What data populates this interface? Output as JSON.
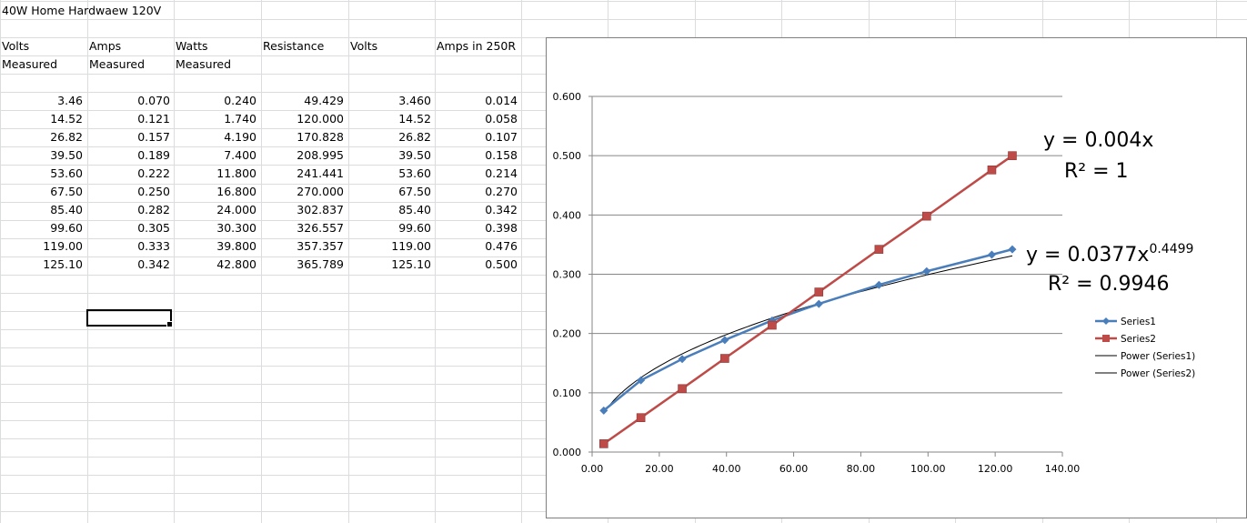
{
  "sheet": {
    "title": "40W Home Hardwaew 120V",
    "headers": [
      {
        "line1": "Volts",
        "line2": "Measured"
      },
      {
        "line1": "Amps",
        "line2": "Measured"
      },
      {
        "line1": "Watts",
        "line2": "Measured"
      },
      {
        "line1": "Resistance",
        "line2": ""
      },
      {
        "line1": "Volts",
        "line2": ""
      },
      {
        "line1": "Amps in 250R",
        "line2": ""
      }
    ],
    "rows": [
      [
        "3.46",
        "0.070",
        "0.240",
        "49.429",
        "3.460",
        "0.014"
      ],
      [
        "14.52",
        "0.121",
        "1.740",
        "120.000",
        "14.52",
        "0.058"
      ],
      [
        "26.82",
        "0.157",
        "4.190",
        "170.828",
        "26.82",
        "0.107"
      ],
      [
        "39.50",
        "0.189",
        "7.400",
        "208.995",
        "39.50",
        "0.158"
      ],
      [
        "53.60",
        "0.222",
        "11.800",
        "241.441",
        "53.60",
        "0.214"
      ],
      [
        "67.50",
        "0.250",
        "16.800",
        "270.000",
        "67.50",
        "0.270"
      ],
      [
        "85.40",
        "0.282",
        "24.000",
        "302.837",
        "85.40",
        "0.342"
      ],
      [
        "99.60",
        "0.305",
        "30.300",
        "326.557",
        "99.60",
        "0.398"
      ],
      [
        "119.00",
        "0.333",
        "39.800",
        "357.357",
        "119.00",
        "0.476"
      ],
      [
        "125.10",
        "0.342",
        "42.800",
        "365.789",
        "125.10",
        "0.500"
      ]
    ]
  },
  "chart_data": {
    "type": "scatter",
    "xlim": [
      0,
      140
    ],
    "ylim": [
      0,
      0.6
    ],
    "x_ticks": [
      "0.00",
      "20.00",
      "40.00",
      "60.00",
      "80.00",
      "100.00",
      "120.00",
      "140.00"
    ],
    "y_ticks": [
      "0.000",
      "0.100",
      "0.200",
      "0.300",
      "0.400",
      "0.500",
      "0.600"
    ],
    "grid": true,
    "legend_position": "right",
    "series": [
      {
        "name": "Series1",
        "color": "#4a7ebb",
        "marker": "diamond",
        "x": [
          3.46,
          14.52,
          26.82,
          39.5,
          53.6,
          67.5,
          85.4,
          99.6,
          119.0,
          125.1
        ],
        "y": [
          0.07,
          0.121,
          0.157,
          0.189,
          0.222,
          0.25,
          0.282,
          0.305,
          0.333,
          0.342
        ]
      },
      {
        "name": "Series2",
        "color": "#be4b48",
        "marker": "square",
        "x": [
          3.46,
          14.52,
          26.82,
          39.5,
          53.6,
          67.5,
          85.4,
          99.6,
          119.0,
          125.1
        ],
        "y": [
          0.014,
          0.058,
          0.107,
          0.158,
          0.214,
          0.27,
          0.342,
          0.398,
          0.476,
          0.5
        ]
      }
    ],
    "trendlines": [
      {
        "name": "Power (Series1)",
        "color": "#000000",
        "coef": 0.0377,
        "exp": 0.4499
      },
      {
        "name": "Power (Series2)",
        "color": "#000000",
        "coef": 0.004,
        "exp": 1
      }
    ],
    "annotations": {
      "eq2": "y = 0.004x",
      "r2_2": "R² = 1",
      "eq1_base": "y = 0.0377x",
      "eq1_exp": "0.4499",
      "r2_1": "R² = 0.9946"
    }
  }
}
